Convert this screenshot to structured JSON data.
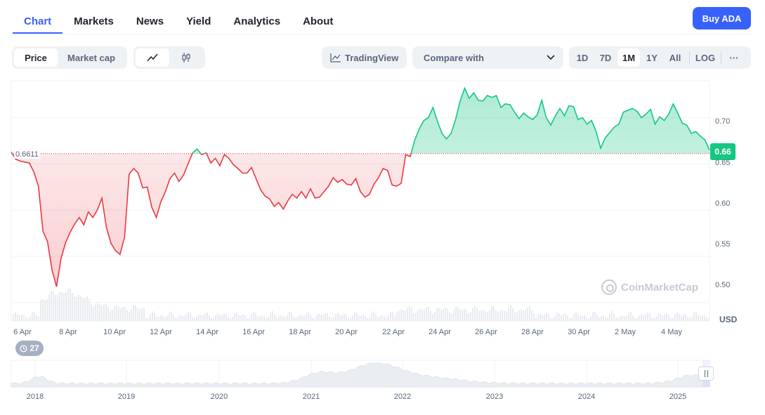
{
  "tabs": [
    {
      "label": "Chart",
      "active": true
    },
    {
      "label": "Markets",
      "active": false
    },
    {
      "label": "News",
      "active": false
    },
    {
      "label": "Yield",
      "active": false
    },
    {
      "label": "Analytics",
      "active": false
    },
    {
      "label": "About",
      "active": false
    }
  ],
  "buy_button": "Buy ADA",
  "toolbar": {
    "metric_toggle": [
      {
        "label": "Price",
        "active": true
      },
      {
        "label": "Market cap",
        "active": false
      }
    ],
    "chart_type_toggle": [
      {
        "icon": "line-chart-icon",
        "active": true
      },
      {
        "icon": "candlestick-icon",
        "active": false
      }
    ],
    "tradingview_label": "TradingView",
    "compare_label": "Compare with",
    "ranges": [
      {
        "label": "1D",
        "active": false
      },
      {
        "label": "7D",
        "active": false
      },
      {
        "label": "1M",
        "active": true
      },
      {
        "label": "1Y",
        "active": false
      },
      {
        "label": "All",
        "active": false
      },
      {
        "label": "LOG",
        "active": false
      }
    ],
    "more_label": "···"
  },
  "chart_data": {
    "type": "line",
    "ylim": [
      0.48,
      0.74
    ],
    "y_ticks": [
      "0.70",
      "0.65",
      "0.60",
      "0.55",
      "0.50"
    ],
    "y_unit": "USD",
    "x_ticks": [
      "6 Apr",
      "8 Apr",
      "10 Apr",
      "12 Apr",
      "14 Apr",
      "16 Apr",
      "18 Apr",
      "20 Apr",
      "22 Apr",
      "24 Apr",
      "26 Apr",
      "28 Apr",
      "30 Apr",
      "2 May",
      "4 May"
    ],
    "reference_price": "0.6611",
    "current_price": "0.66",
    "colors": {
      "above": "#16c784",
      "below": "#ea3943"
    },
    "series": [
      {
        "values": [
          0.663,
          0.655,
          0.653,
          0.652,
          0.651,
          0.641,
          0.626,
          0.577,
          0.566,
          0.535,
          0.517,
          0.548,
          0.565,
          0.576,
          0.585,
          0.592,
          0.584,
          0.598,
          0.592,
          0.6,
          0.613,
          0.581,
          0.564,
          0.556,
          0.552,
          0.571,
          0.639,
          0.645,
          0.64,
          0.624,
          0.625,
          0.603,
          0.592,
          0.609,
          0.62,
          0.634,
          0.64,
          0.631,
          0.638,
          0.65,
          0.662,
          0.666,
          0.66,
          0.662,
          0.651,
          0.656,
          0.648,
          0.66,
          0.656,
          0.649,
          0.645,
          0.64,
          0.64,
          0.646,
          0.634,
          0.622,
          0.615,
          0.612,
          0.604,
          0.608,
          0.601,
          0.61,
          0.617,
          0.613,
          0.62,
          0.613,
          0.623,
          0.613,
          0.614,
          0.62,
          0.626,
          0.635,
          0.63,
          0.633,
          0.628,
          0.627,
          0.634,
          0.62,
          0.614,
          0.617,
          0.628,
          0.635,
          0.645,
          0.643,
          0.627,
          0.626,
          0.629,
          0.66,
          0.658,
          0.676,
          0.688,
          0.697,
          0.7,
          0.711,
          0.696,
          0.683,
          0.677,
          0.683,
          0.698,
          0.718,
          0.732,
          0.721,
          0.727,
          0.719,
          0.718,
          0.724,
          0.722,
          0.724,
          0.711,
          0.715,
          0.714,
          0.706,
          0.699,
          0.705,
          0.701,
          0.698,
          0.703,
          0.719,
          0.7,
          0.692,
          0.702,
          0.71,
          0.702,
          0.713,
          0.712,
          0.698,
          0.7,
          0.693,
          0.697,
          0.685,
          0.667,
          0.678,
          0.684,
          0.69,
          0.693,
          0.706,
          0.708,
          0.71,
          0.707,
          0.7,
          0.704,
          0.709,
          0.693,
          0.701,
          0.697,
          0.704,
          0.715,
          0.705,
          0.694,
          0.692,
          0.683,
          0.685,
          0.68,
          0.676,
          0.665
        ]
      }
    ]
  },
  "watermark": "CoinMarketCap",
  "history_badge": "27",
  "navigator": {
    "years": [
      "2018",
      "2019",
      "2020",
      "2021",
      "2022",
      "2023",
      "2024",
      "2025"
    ]
  }
}
